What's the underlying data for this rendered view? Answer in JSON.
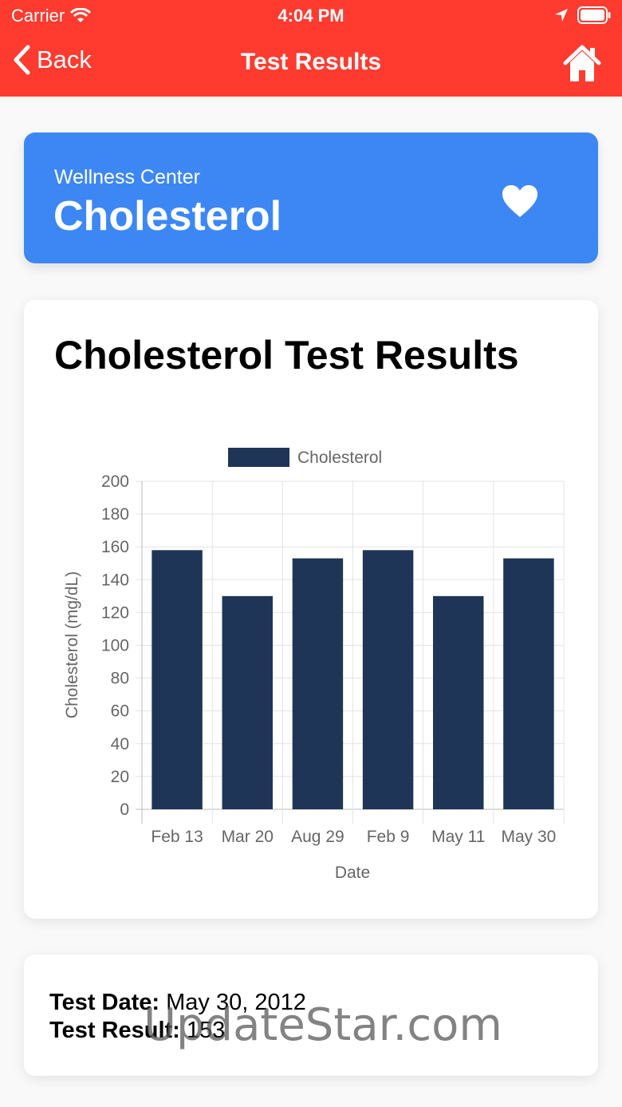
{
  "status_bar": {
    "carrier": "Carrier",
    "time": "4:04 PM"
  },
  "nav": {
    "back_label": "Back",
    "title": "Test Results"
  },
  "banner": {
    "subtitle": "Wellness Center",
    "title": "Cholesterol"
  },
  "card": {
    "title": "Cholesterol Test Results"
  },
  "chart_data": {
    "type": "bar",
    "categories": [
      "Feb 13",
      "Mar 20",
      "Aug 29",
      "Feb 9",
      "May 11",
      "May 30"
    ],
    "series": [
      {
        "name": "Cholesterol",
        "values": [
          158,
          130,
          153,
          158,
          130,
          153
        ],
        "color": "#1e3557"
      }
    ],
    "xlabel": "Date",
    "ylabel": "Cholesterol (mg/dL)",
    "ylim": [
      0,
      200
    ],
    "yticks": [
      0,
      20,
      40,
      60,
      80,
      100,
      120,
      140,
      160,
      180,
      200
    ],
    "grid": true,
    "legend": "top-center"
  },
  "info": {
    "date_label": "Test Date:",
    "date_value": "May 30, 2012",
    "result_label": "Test Result:",
    "result_value": "153"
  },
  "watermark": "UpdateStar.com",
  "colors": {
    "topbar": "#ff3b30",
    "banner": "#3d87f5",
    "bar": "#1e3557"
  }
}
